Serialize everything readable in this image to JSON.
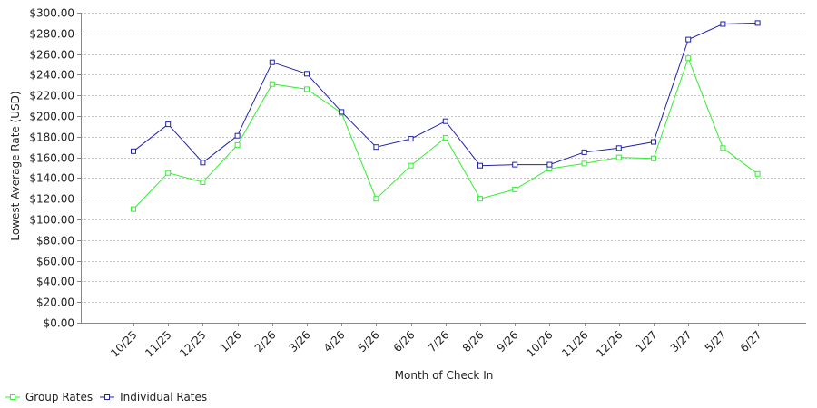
{
  "chart_data": {
    "type": "line",
    "title": "",
    "xlabel": "Month of Check In",
    "ylabel": "Lowest Average Rate (USD)",
    "categories": [
      "10/25",
      "11/25",
      "12/25",
      "1/26",
      "2/26",
      "3/26",
      "4/26",
      "5/26",
      "6/26",
      "7/26",
      "8/26",
      "9/26",
      "10/26",
      "11/26",
      "12/26",
      "1/27",
      "3/27",
      "5/27",
      "6/27"
    ],
    "ylim": [
      0,
      300
    ],
    "yticks": [
      "$0.00",
      "$20.00",
      "$40.00",
      "$60.00",
      "$80.00",
      "$100.00",
      "$120.00",
      "$140.00",
      "$160.00",
      "$180.00",
      "$200.00",
      "$220.00",
      "$240.00",
      "$260.00",
      "$280.00",
      "$300.00"
    ],
    "grid": true,
    "legend_position": "bottom-left",
    "series": [
      {
        "name": "Group Rates",
        "color": "#33ee33",
        "values": [
          110,
          145,
          136,
          172,
          231,
          226,
          203,
          120,
          152,
          179,
          120,
          129,
          149,
          154,
          160,
          159,
          256,
          169,
          144
        ]
      },
      {
        "name": "Individual Rates",
        "color": "#2222aa",
        "values": [
          166,
          192,
          155,
          181,
          252,
          241,
          204,
          170,
          178,
          195,
          152,
          153,
          153,
          165,
          169,
          175,
          274,
          289,
          290
        ]
      }
    ]
  }
}
